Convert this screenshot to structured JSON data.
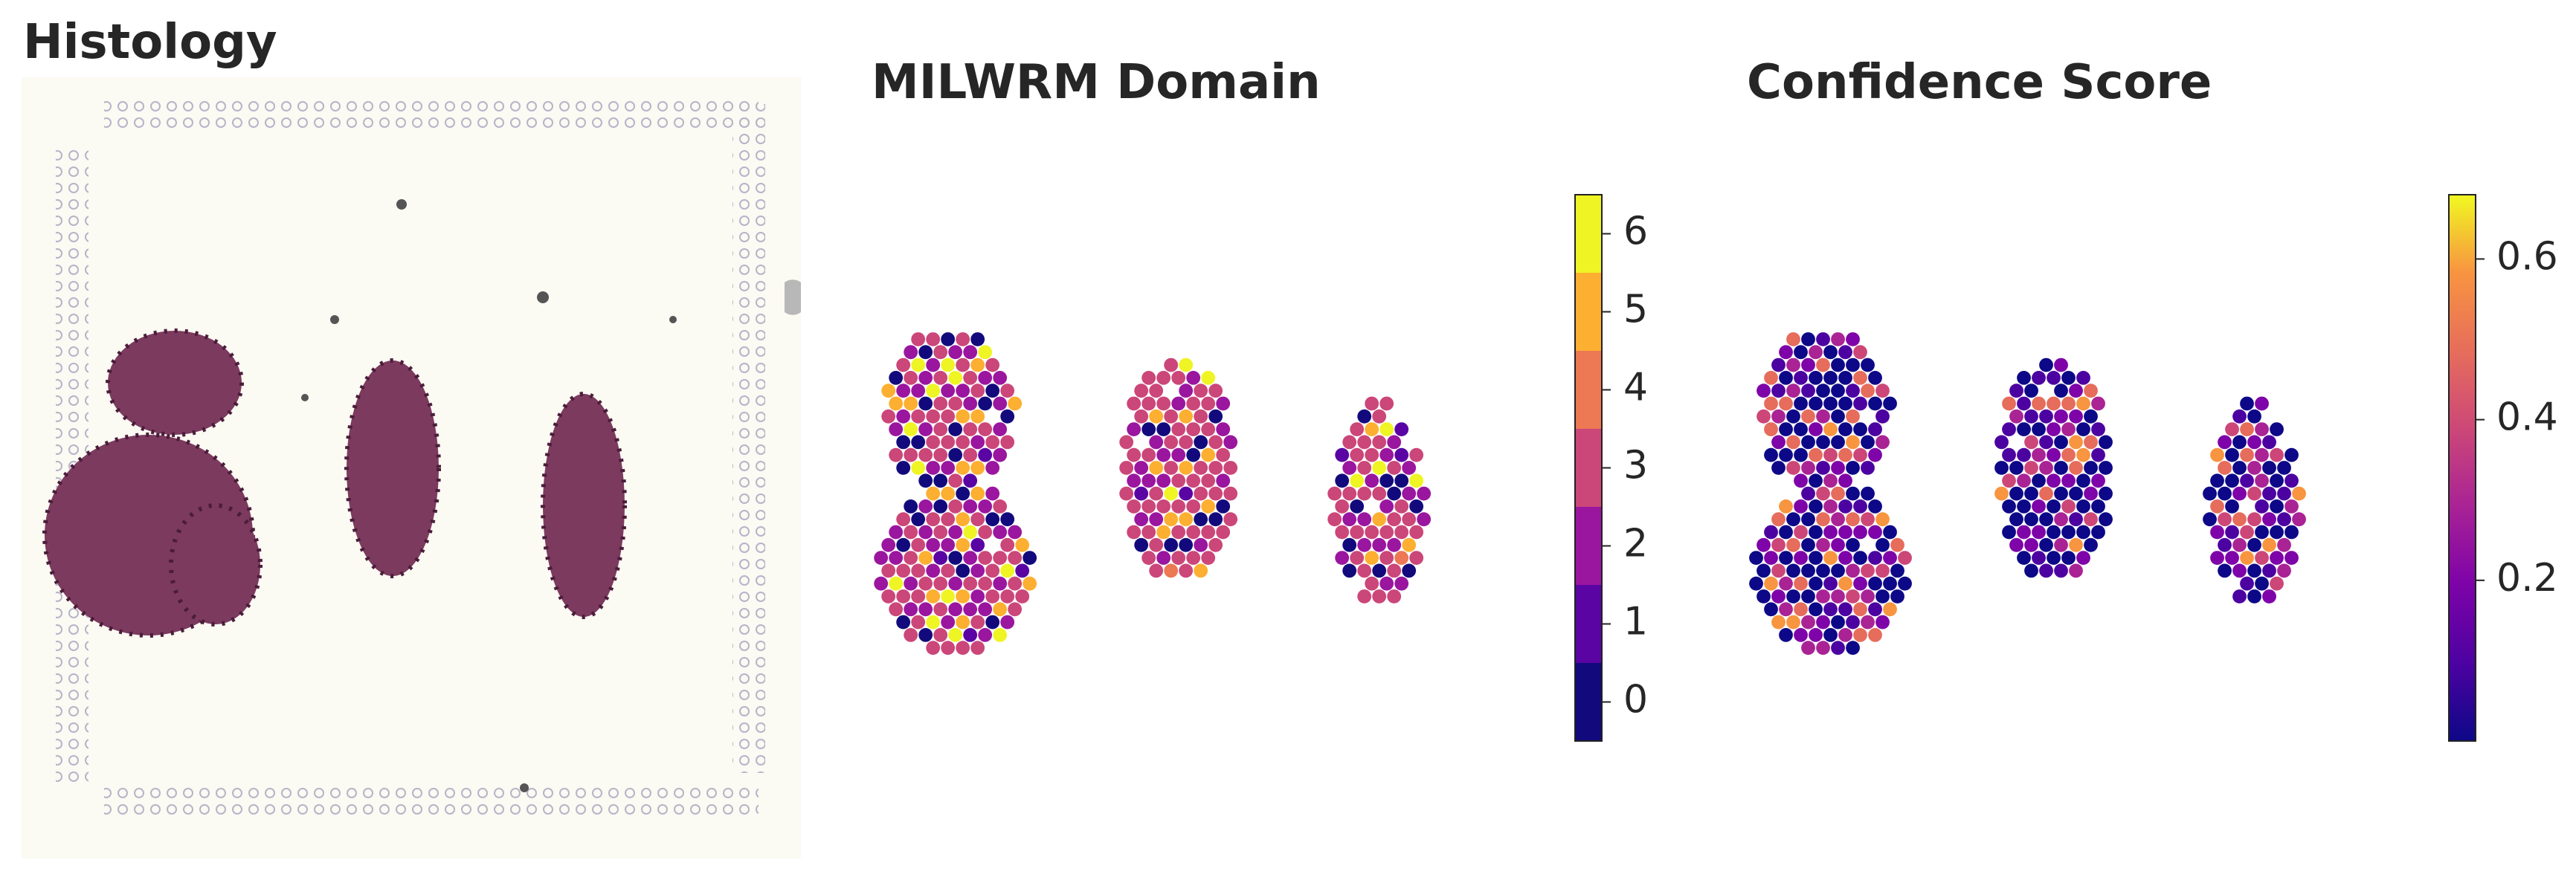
{
  "panels": [
    {
      "title": "Histology"
    },
    {
      "title": "MILWRM Domain",
      "colorbar": {
        "lim": [
          -0.5,
          6.5
        ],
        "ticks": [
          0,
          1,
          2,
          3,
          4,
          5,
          6
        ],
        "colors": [
          "#120a7c",
          "#5a04a4",
          "#9a169f",
          "#cb4679",
          "#ec7854",
          "#fcaf31",
          "#eff424"
        ]
      }
    },
    {
      "title": "Confidence Score",
      "colorbar": {
        "lim": [
          0.0,
          0.68
        ],
        "ticks": [
          0.2,
          0.4,
          0.6
        ],
        "colormap": "plasma"
      }
    }
  ]
}
